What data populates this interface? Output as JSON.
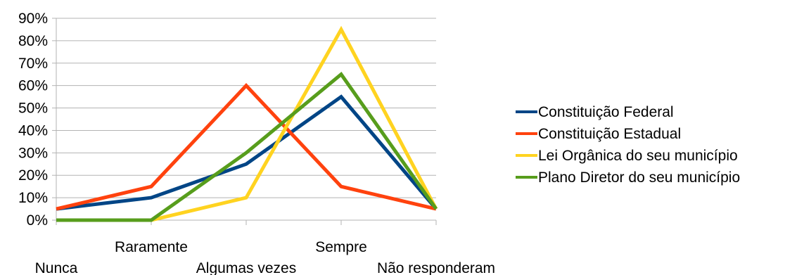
{
  "chart_data": {
    "type": "line",
    "categories": [
      "Nunca",
      "Raramente",
      "Algumas vezes",
      "Sempre",
      "Não responderam"
    ],
    "ylim": [
      0,
      90
    ],
    "yticks": [
      0,
      10,
      20,
      30,
      40,
      50,
      60,
      70,
      80,
      90
    ],
    "ytick_labels": [
      "0%",
      "10%",
      "20%",
      "30%",
      "40%",
      "50%",
      "60%",
      "70%",
      "80%",
      "90%"
    ],
    "grid": true,
    "legend": "right",
    "series": [
      {
        "name": "Constituição Federal",
        "color": "#004586",
        "values": [
          5,
          10,
          25,
          55,
          5
        ]
      },
      {
        "name": "Constituição Estadual",
        "color": "#ff420e",
        "values": [
          5,
          15,
          60,
          15,
          5
        ]
      },
      {
        "name": "Lei Orgânica do seu município",
        "color": "#ffd320",
        "values": [
          0,
          0,
          10,
          85,
          5
        ]
      },
      {
        "name": "Plano Diretor do seu município",
        "color": "#579d1c",
        "values": [
          0,
          0,
          30,
          65,
          5
        ]
      }
    ]
  }
}
